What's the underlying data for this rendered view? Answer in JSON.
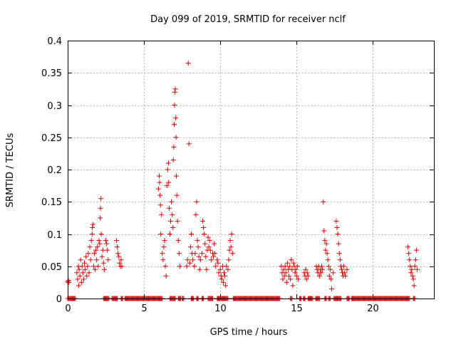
{
  "chart_data": {
    "type": "scatter",
    "title": "Day 099 of 2019, SRMTID for receiver nclf",
    "xlabel": "GPS time / hours",
    "ylabel": "SRMTID / TECUs",
    "xlim": [
      0,
      24
    ],
    "ylim": [
      0,
      0.4
    ],
    "x_ticks": [
      0,
      5,
      10,
      15,
      20
    ],
    "y_ticks": [
      0,
      0.05,
      0.1,
      0.15,
      0.2,
      0.25,
      0.3,
      0.35,
      0.4
    ],
    "x_tick_labels": [
      "0",
      "5",
      "10",
      "15",
      "20"
    ],
    "y_tick_labels": [
      "0",
      "0.05",
      "0.1",
      "0.15",
      "0.2",
      "0.25",
      "0.3",
      "0.35",
      "0.4"
    ],
    "grid": true,
    "marker": "+",
    "color": "#e00000",
    "series": [
      {
        "name": "SRMTID",
        "points": [
          [
            0.0,
            0.026
          ],
          [
            0.05,
            0.028
          ],
          [
            0.08,
            0.025
          ],
          [
            0.6,
            0.04
          ],
          [
            0.65,
            0.03
          ],
          [
            0.7,
            0.05
          ],
          [
            0.72,
            0.02
          ],
          [
            0.75,
            0.045
          ],
          [
            0.8,
            0.035
          ],
          [
            0.85,
            0.06
          ],
          [
            0.9,
            0.025
          ],
          [
            0.95,
            0.05
          ],
          [
            1.0,
            0.04
          ],
          [
            1.05,
            0.03
          ],
          [
            1.1,
            0.055
          ],
          [
            1.15,
            0.045
          ],
          [
            1.2,
            0.065
          ],
          [
            1.25,
            0.035
          ],
          [
            1.3,
            0.05
          ],
          [
            1.35,
            0.07
          ],
          [
            1.4,
            0.04
          ],
          [
            1.45,
            0.08
          ],
          [
            1.5,
            0.06
          ],
          [
            1.55,
            0.09
          ],
          [
            1.6,
            0.1
          ],
          [
            1.62,
            0.11
          ],
          [
            1.65,
            0.115
          ],
          [
            1.7,
            0.05
          ],
          [
            1.75,
            0.07
          ],
          [
            1.8,
            0.045
          ],
          [
            1.85,
            0.075
          ],
          [
            1.9,
            0.06
          ],
          [
            1.95,
            0.08
          ],
          [
            2.0,
            0.05
          ],
          [
            2.05,
            0.09
          ],
          [
            2.1,
            0.085
          ],
          [
            2.12,
            0.125
          ],
          [
            2.15,
            0.14
          ],
          [
            2.18,
            0.155
          ],
          [
            2.2,
            0.1
          ],
          [
            2.25,
            0.065
          ],
          [
            2.3,
            0.075
          ],
          [
            2.35,
            0.055
          ],
          [
            2.4,
            0.045
          ],
          [
            2.5,
            0.09
          ],
          [
            2.55,
            0.085
          ],
          [
            2.6,
            0.075
          ],
          [
            2.65,
            0.06
          ],
          [
            3.2,
            0.09
          ],
          [
            3.25,
            0.08
          ],
          [
            3.3,
            0.07
          ],
          [
            3.35,
            0.065
          ],
          [
            3.4,
            0.055
          ],
          [
            3.45,
            0.05
          ],
          [
            3.5,
            0.06
          ],
          [
            3.55,
            0.05
          ],
          [
            5.95,
            0.17
          ],
          [
            6.0,
            0.19
          ],
          [
            6.02,
            0.18
          ],
          [
            6.05,
            0.16
          ],
          [
            6.08,
            0.145
          ],
          [
            6.1,
            0.1
          ],
          [
            6.15,
            0.13
          ],
          [
            6.2,
            0.07
          ],
          [
            6.25,
            0.06
          ],
          [
            6.3,
            0.08
          ],
          [
            6.35,
            0.09
          ],
          [
            6.4,
            0.05
          ],
          [
            6.45,
            0.035
          ],
          [
            6.5,
            0.175
          ],
          [
            6.55,
            0.2
          ],
          [
            6.6,
            0.21
          ],
          [
            6.62,
            0.18
          ],
          [
            6.65,
            0.14
          ],
          [
            6.7,
            0.1
          ],
          [
            6.75,
            0.12
          ],
          [
            6.8,
            0.15
          ],
          [
            6.85,
            0.13
          ],
          [
            6.9,
            0.11
          ],
          [
            6.92,
            0.215
          ],
          [
            6.95,
            0.235
          ],
          [
            6.98,
            0.27
          ],
          [
            7.0,
            0.3
          ],
          [
            7.02,
            0.32
          ],
          [
            7.05,
            0.325
          ],
          [
            7.08,
            0.28
          ],
          [
            7.1,
            0.25
          ],
          [
            7.12,
            0.19
          ],
          [
            7.15,
            0.16
          ],
          [
            7.2,
            0.12
          ],
          [
            7.25,
            0.09
          ],
          [
            7.3,
            0.07
          ],
          [
            7.35,
            0.05
          ],
          [
            7.8,
            0.05
          ],
          [
            7.85,
            0.06
          ],
          [
            7.9,
            0.365
          ],
          [
            7.95,
            0.24
          ],
          [
            8.0,
            0.055
          ],
          [
            8.05,
            0.08
          ],
          [
            8.1,
            0.1
          ],
          [
            8.15,
            0.07
          ],
          [
            8.2,
            0.06
          ],
          [
            8.3,
            0.05
          ],
          [
            8.35,
            0.07
          ],
          [
            8.4,
            0.13
          ],
          [
            8.45,
            0.15
          ],
          [
            8.5,
            0.09
          ],
          [
            8.55,
            0.08
          ],
          [
            8.6,
            0.065
          ],
          [
            8.65,
            0.045
          ],
          [
            8.7,
            0.06
          ],
          [
            8.8,
            0.07
          ],
          [
            8.85,
            0.12
          ],
          [
            8.9,
            0.11
          ],
          [
            8.95,
            0.1
          ],
          [
            9.0,
            0.085
          ],
          [
            9.05,
            0.065
          ],
          [
            9.1,
            0.045
          ],
          [
            9.15,
            0.075
          ],
          [
            9.2,
            0.095
          ],
          [
            9.25,
            0.08
          ],
          [
            9.3,
            0.09
          ],
          [
            9.35,
            0.075
          ],
          [
            9.4,
            0.06
          ],
          [
            9.5,
            0.07
          ],
          [
            9.55,
            0.065
          ],
          [
            9.6,
            0.085
          ],
          [
            9.65,
            0.07
          ],
          [
            9.7,
            0.05
          ],
          [
            9.8,
            0.06
          ],
          [
            9.85,
            0.055
          ],
          [
            9.9,
            0.04
          ],
          [
            10.0,
            0.045
          ],
          [
            10.05,
            0.035
          ],
          [
            10.1,
            0.03
          ],
          [
            10.15,
            0.05
          ],
          [
            10.2,
            0.025
          ],
          [
            10.25,
            0.04
          ],
          [
            10.3,
            0.035
          ],
          [
            10.35,
            0.02
          ],
          [
            10.4,
            0.05
          ],
          [
            10.5,
            0.045
          ],
          [
            10.55,
            0.06
          ],
          [
            10.6,
            0.075
          ],
          [
            10.65,
            0.09
          ],
          [
            10.7,
            0.08
          ],
          [
            10.75,
            0.1
          ],
          [
            10.8,
            0.07
          ],
          [
            14.0,
            0.05
          ],
          [
            14.05,
            0.04
          ],
          [
            14.1,
            0.03
          ],
          [
            14.15,
            0.045
          ],
          [
            14.2,
            0.035
          ],
          [
            14.25,
            0.05
          ],
          [
            14.3,
            0.04
          ],
          [
            14.35,
            0.025
          ],
          [
            14.4,
            0.055
          ],
          [
            14.45,
            0.045
          ],
          [
            14.5,
            0.035
          ],
          [
            14.55,
            0.05
          ],
          [
            14.6,
            0.03
          ],
          [
            14.65,
            0.06
          ],
          [
            14.7,
            0.045
          ],
          [
            14.75,
            0.02
          ],
          [
            14.8,
            0.055
          ],
          [
            14.85,
            0.05
          ],
          [
            14.9,
            0.04
          ],
          [
            14.95,
            0.045
          ],
          [
            15.0,
            0.035
          ],
          [
            15.05,
            0.05
          ],
          [
            15.1,
            0.03
          ],
          [
            15.5,
            0.04
          ],
          [
            15.55,
            0.035
          ],
          [
            15.6,
            0.045
          ],
          [
            15.65,
            0.03
          ],
          [
            15.7,
            0.04
          ],
          [
            15.75,
            0.035
          ],
          [
            16.3,
            0.05
          ],
          [
            16.35,
            0.045
          ],
          [
            16.4,
            0.04
          ],
          [
            16.45,
            0.05
          ],
          [
            16.5,
            0.035
          ],
          [
            16.55,
            0.045
          ],
          [
            16.6,
            0.04
          ],
          [
            16.65,
            0.05
          ],
          [
            16.7,
            0.045
          ],
          [
            16.75,
            0.15
          ],
          [
            16.8,
            0.105
          ],
          [
            16.85,
            0.09
          ],
          [
            16.9,
            0.075
          ],
          [
            16.95,
            0.085
          ],
          [
            17.0,
            0.07
          ],
          [
            17.05,
            0.06
          ],
          [
            17.1,
            0.05
          ],
          [
            17.15,
            0.035
          ],
          [
            17.2,
            0.045
          ],
          [
            17.25,
            0.03
          ],
          [
            17.3,
            0.015
          ],
          [
            17.4,
            0.04
          ],
          [
            17.6,
            0.12
          ],
          [
            17.65,
            0.11
          ],
          [
            17.7,
            0.1
          ],
          [
            17.75,
            0.085
          ],
          [
            17.8,
            0.07
          ],
          [
            17.85,
            0.06
          ],
          [
            17.9,
            0.05
          ],
          [
            17.95,
            0.045
          ],
          [
            18.0,
            0.04
          ],
          [
            18.05,
            0.035
          ],
          [
            18.1,
            0.05
          ],
          [
            18.15,
            0.04
          ],
          [
            18.2,
            0.035
          ],
          [
            18.3,
            0.045
          ],
          [
            22.3,
            0.08
          ],
          [
            22.35,
            0.07
          ],
          [
            22.4,
            0.06
          ],
          [
            22.45,
            0.05
          ],
          [
            22.5,
            0.04
          ],
          [
            22.55,
            0.045
          ],
          [
            22.6,
            0.035
          ],
          [
            22.65,
            0.03
          ],
          [
            22.7,
            0.02
          ],
          [
            22.75,
            0.05
          ],
          [
            22.8,
            0.06
          ],
          [
            22.85,
            0.075
          ],
          [
            22.9,
            0.045
          ]
        ]
      }
    ],
    "zero_value_segments": [
      [
        0.0,
        0.5
      ],
      [
        2.35,
        2.7
      ],
      [
        2.9,
        3.25
      ],
      [
        3.5,
        3.6
      ],
      [
        3.75,
        6.2
      ],
      [
        6.7,
        7.05
      ],
      [
        7.25,
        7.4
      ],
      [
        7.5,
        7.6
      ],
      [
        8.1,
        8.25
      ],
      [
        8.45,
        8.55
      ],
      [
        8.8,
        8.9
      ],
      [
        9.2,
        9.5
      ],
      [
        9.8,
        10.5
      ],
      [
        10.85,
        13.9
      ],
      [
        14.6,
        14.7
      ],
      [
        15.2,
        15.3
      ],
      [
        15.45,
        15.55
      ],
      [
        15.75,
        16.05
      ],
      [
        16.25,
        16.5
      ],
      [
        16.85,
        16.95
      ],
      [
        17.1,
        17.2
      ],
      [
        17.45,
        17.9
      ],
      [
        18.3,
        18.45
      ],
      [
        18.6,
        22.4
      ],
      [
        22.65,
        22.75
      ]
    ]
  }
}
